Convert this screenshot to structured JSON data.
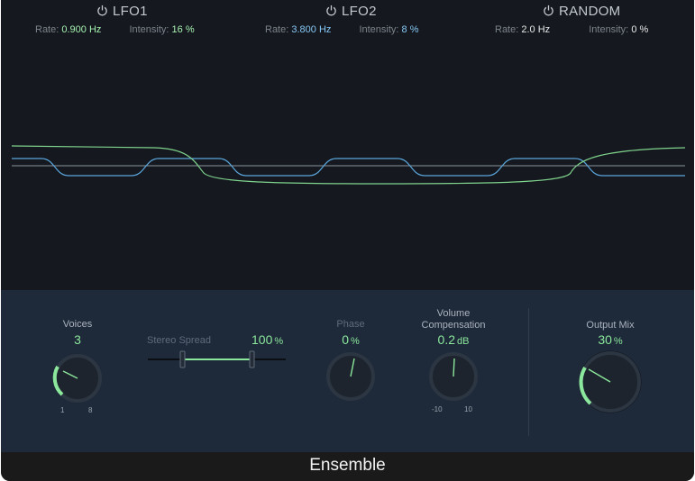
{
  "lfos": [
    {
      "title": "LFO1",
      "rate_label": "Rate:",
      "rate": "0.900 Hz",
      "intensity_label": "Intensity:",
      "intensity": "16 %",
      "color": "#a6f0b0"
    },
    {
      "title": "LFO2",
      "rate_label": "Rate:",
      "rate": "3.800 Hz",
      "intensity_label": "Intensity:",
      "intensity": "8 %",
      "color": "#86c7f4"
    },
    {
      "title": "RANDOM",
      "rate_label": "Rate:",
      "rate": "2.0 Hz",
      "intensity_label": "Intensity:",
      "intensity": "0 %",
      "color": "#e6e6e6"
    }
  ],
  "controls": {
    "voices": {
      "label": "Voices",
      "value": "3",
      "min": "1",
      "max": "8",
      "level": 0.28
    },
    "stereo_spread": {
      "label": "Stereo Spread",
      "value": "100",
      "unit": "%"
    },
    "phase": {
      "label": "Phase",
      "value": "0",
      "unit": "%",
      "level": 0.55
    },
    "volume_comp": {
      "label_line1": "Volume",
      "label_line2": "Compensation",
      "value": "0.2",
      "unit": "dB",
      "min": "-10",
      "max": "10",
      "level": 0.51
    },
    "output_mix": {
      "label": "Output Mix",
      "value": "30",
      "unit": "%",
      "level": 0.3
    }
  },
  "footer": {
    "title": "Ensemble"
  },
  "colors": {
    "accent_green": "#8be79b",
    "lfo2_blue": "#86c7f4",
    "panel": "#1e2a3a",
    "background": "#15191f"
  },
  "icons": {
    "power": "power-icon"
  }
}
